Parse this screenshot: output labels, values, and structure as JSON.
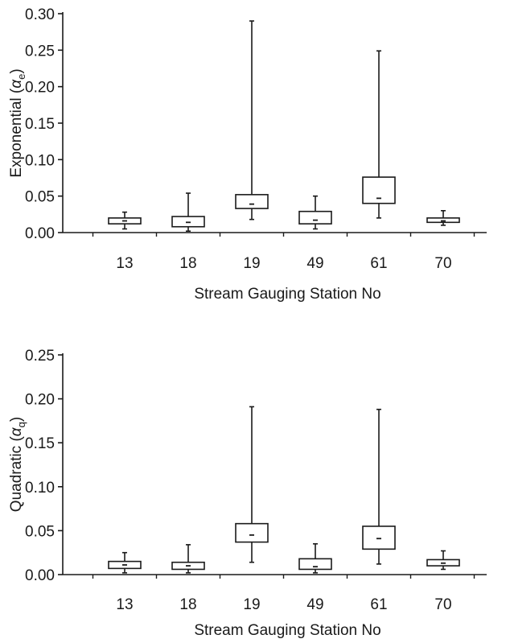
{
  "chart_data": [
    {
      "type": "box",
      "ylabel": {
        "base": "Exponential (",
        "symbol": "α",
        "subscript": "e",
        "close": ")"
      },
      "xlabel": "Stream Gauging Station No",
      "ylim": [
        0,
        0.3
      ],
      "yticks": [
        "0.00",
        "0.05",
        "0.10",
        "0.15",
        "0.20",
        "0.25",
        "0.30"
      ],
      "categories": [
        "13",
        "18",
        "19",
        "49",
        "61",
        "70"
      ],
      "boxes": [
        {
          "category": "13",
          "min": 0.005,
          "q1": 0.012,
          "median": 0.016,
          "q3": 0.02,
          "max": 0.028
        },
        {
          "category": "18",
          "min": 0.002,
          "q1": 0.008,
          "median": 0.014,
          "q3": 0.022,
          "max": 0.054
        },
        {
          "category": "19",
          "min": 0.018,
          "q1": 0.033,
          "median": 0.039,
          "q3": 0.052,
          "max": 0.29
        },
        {
          "category": "49",
          "min": 0.005,
          "q1": 0.012,
          "median": 0.017,
          "q3": 0.029,
          "max": 0.05
        },
        {
          "category": "61",
          "min": 0.02,
          "q1": 0.04,
          "median": 0.047,
          "q3": 0.076,
          "max": 0.249
        },
        {
          "category": "70",
          "min": 0.01,
          "q1": 0.014,
          "median": 0.016,
          "q3": 0.02,
          "max": 0.03
        }
      ]
    },
    {
      "type": "box",
      "ylabel": {
        "base": "Quadratic (",
        "symbol": "α",
        "subscript": "q",
        "close": ")"
      },
      "xlabel": "Stream Gauging Station No",
      "ylim": [
        0,
        0.25
      ],
      "yticks": [
        "0.00",
        "0.05",
        "0.10",
        "0.15",
        "0.20",
        "0.25"
      ],
      "categories": [
        "13",
        "18",
        "19",
        "49",
        "61",
        "70"
      ],
      "boxes": [
        {
          "category": "13",
          "min": 0.002,
          "q1": 0.007,
          "median": 0.011,
          "q3": 0.015,
          "max": 0.025
        },
        {
          "category": "18",
          "min": 0.002,
          "q1": 0.006,
          "median": 0.01,
          "q3": 0.014,
          "max": 0.034
        },
        {
          "category": "19",
          "min": 0.014,
          "q1": 0.037,
          "median": 0.045,
          "q3": 0.058,
          "max": 0.191
        },
        {
          "category": "49",
          "min": 0.002,
          "q1": 0.006,
          "median": 0.009,
          "q3": 0.018,
          "max": 0.035
        },
        {
          "category": "61",
          "min": 0.012,
          "q1": 0.029,
          "median": 0.041,
          "q3": 0.055,
          "max": 0.188
        },
        {
          "category": "70",
          "min": 0.006,
          "q1": 0.01,
          "median": 0.013,
          "q3": 0.017,
          "max": 0.027
        }
      ]
    }
  ]
}
